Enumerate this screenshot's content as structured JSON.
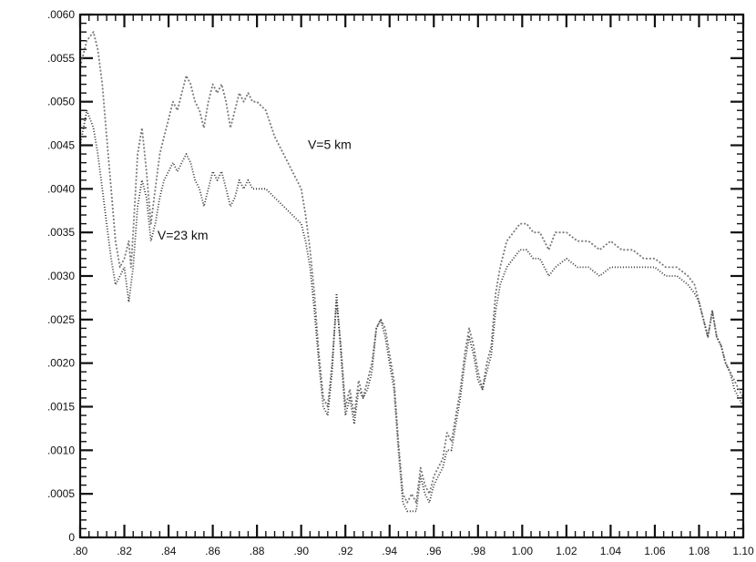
{
  "chart_data": {
    "type": "line",
    "title": "",
    "xlabel": "",
    "ylabel": "",
    "xlim": [
      0.8,
      1.1
    ],
    "ylim": [
      0,
      0.006
    ],
    "grid": false,
    "legend": "none",
    "x_ticks": [
      0.8,
      0.82,
      0.84,
      0.86,
      0.88,
      0.9,
      0.92,
      0.94,
      0.96,
      0.98,
      1.0,
      1.02,
      1.04,
      1.06,
      1.08,
      1.1
    ],
    "x_tick_labels": [
      ".80",
      ".82",
      ".84",
      ".86",
      ".88",
      ".90",
      ".92",
      ".94",
      ".96",
      ".98",
      "1.00",
      "1.02",
      "1.04",
      "1.06",
      "1.08",
      "1.10"
    ],
    "y_ticks": [
      0,
      0.0005,
      0.001,
      0.0015,
      0.002,
      0.0025,
      0.003,
      0.0035,
      0.004,
      0.0045,
      0.005,
      0.0055,
      0.006
    ],
    "y_tick_labels": [
      "0",
      ".0005",
      ".0010",
      ".0015",
      ".0020",
      ".0025",
      ".0030",
      ".0035",
      ".0040",
      ".0045",
      ".0050",
      ".0055",
      ".0060"
    ],
    "annotations": [
      {
        "text": "V=5 km",
        "x": 0.903,
        "y": 0.00446
      },
      {
        "text": "V=23 km",
        "x": 0.835,
        "y": 0.00342
      }
    ],
    "series": [
      {
        "color": "#7a7a7a",
        "dash": "2,2",
        "x": [
          0.8,
          0.803,
          0.806,
          0.808,
          0.81,
          0.812,
          0.814,
          0.816,
          0.818,
          0.82,
          0.822,
          0.823,
          0.824,
          0.826,
          0.828,
          0.83,
          0.832,
          0.834,
          0.836,
          0.838,
          0.84,
          0.842,
          0.844,
          0.846,
          0.848,
          0.85,
          0.852,
          0.854,
          0.856,
          0.858,
          0.86,
          0.862,
          0.864,
          0.866,
          0.868,
          0.87,
          0.872,
          0.874,
          0.876,
          0.878,
          0.88,
          0.884,
          0.888,
          0.892,
          0.896,
          0.9,
          0.902,
          0.904,
          0.906,
          0.908,
          0.91,
          0.912,
          0.914,
          0.916,
          0.918,
          0.92,
          0.922,
          0.924,
          0.926,
          0.928,
          0.93,
          0.932,
          0.934,
          0.936,
          0.938,
          0.94,
          0.942,
          0.944,
          0.946,
          0.948,
          0.95,
          0.952,
          0.954,
          0.956,
          0.958,
          0.96,
          0.962,
          0.964,
          0.966,
          0.968,
          0.97,
          0.972,
          0.974,
          0.976,
          0.978,
          0.98,
          0.982,
          0.984,
          0.986,
          0.988,
          0.99,
          0.993,
          0.996,
          0.999,
          1.002,
          1.005,
          1.008,
          1.01,
          1.012,
          1.015,
          1.02,
          1.025,
          1.03,
          1.035,
          1.04,
          1.045,
          1.05,
          1.055,
          1.06,
          1.065,
          1.07,
          1.075,
          1.078,
          1.08,
          1.082,
          1.084,
          1.086,
          1.088,
          1.09,
          1.092,
          1.094,
          1.096,
          1.098,
          1.1
        ],
        "y": [
          0.0054,
          0.0057,
          0.0058,
          0.0056,
          0.0052,
          0.0046,
          0.004,
          0.0034,
          0.0031,
          0.0032,
          0.0034,
          0.0031,
          0.0035,
          0.0044,
          0.0047,
          0.0042,
          0.0036,
          0.004,
          0.0044,
          0.0046,
          0.0048,
          0.005,
          0.0049,
          0.0051,
          0.0053,
          0.0052,
          0.005,
          0.0049,
          0.0047,
          0.005,
          0.0052,
          0.0051,
          0.0052,
          0.005,
          0.0047,
          0.0049,
          0.0051,
          0.005,
          0.0051,
          0.005,
          0.005,
          0.0049,
          0.0046,
          0.0044,
          0.0042,
          0.004,
          0.0037,
          0.0033,
          0.0028,
          0.0021,
          0.0016,
          0.0015,
          0.002,
          0.0027,
          0.0022,
          0.0015,
          0.0017,
          0.0014,
          0.0018,
          0.0016,
          0.0018,
          0.002,
          0.0024,
          0.0025,
          0.0024,
          0.0021,
          0.0018,
          0.0011,
          0.0005,
          0.0004,
          0.0005,
          0.0004,
          0.0008,
          0.0006,
          0.0005,
          0.0007,
          0.0008,
          0.0009,
          0.0012,
          0.0011,
          0.0014,
          0.0017,
          0.0021,
          0.0024,
          0.0022,
          0.0019,
          0.0017,
          0.002,
          0.0022,
          0.0028,
          0.0031,
          0.0034,
          0.0035,
          0.0036,
          0.0036,
          0.0035,
          0.0035,
          0.0034,
          0.0033,
          0.0035,
          0.0035,
          0.0034,
          0.0034,
          0.0033,
          0.0034,
          0.0033,
          0.0033,
          0.0032,
          0.0032,
          0.0031,
          0.0031,
          0.003,
          0.0029,
          0.0027,
          0.0025,
          0.0023,
          0.0026,
          0.0023,
          0.0022,
          0.002,
          0.0019,
          0.0018,
          0.0017,
          0.0016
        ]
      },
      {
        "color": "#333333",
        "dash": "1,2",
        "x": [
          0.8,
          0.803,
          0.806,
          0.808,
          0.81,
          0.812,
          0.814,
          0.816,
          0.818,
          0.82,
          0.822,
          0.823,
          0.824,
          0.826,
          0.828,
          0.83,
          0.832,
          0.834,
          0.836,
          0.838,
          0.84,
          0.842,
          0.844,
          0.846,
          0.848,
          0.85,
          0.852,
          0.854,
          0.856,
          0.858,
          0.86,
          0.862,
          0.864,
          0.866,
          0.868,
          0.87,
          0.872,
          0.874,
          0.876,
          0.878,
          0.88,
          0.884,
          0.888,
          0.892,
          0.896,
          0.9,
          0.902,
          0.904,
          0.906,
          0.908,
          0.91,
          0.912,
          0.914,
          0.916,
          0.918,
          0.92,
          0.922,
          0.924,
          0.926,
          0.928,
          0.93,
          0.932,
          0.934,
          0.936,
          0.938,
          0.94,
          0.942,
          0.944,
          0.946,
          0.948,
          0.95,
          0.952,
          0.954,
          0.956,
          0.958,
          0.96,
          0.962,
          0.964,
          0.966,
          0.968,
          0.97,
          0.972,
          0.974,
          0.976,
          0.978,
          0.98,
          0.982,
          0.984,
          0.986,
          0.988,
          0.99,
          0.993,
          0.996,
          0.999,
          1.002,
          1.005,
          1.008,
          1.01,
          1.012,
          1.015,
          1.02,
          1.025,
          1.03,
          1.035,
          1.04,
          1.045,
          1.05,
          1.055,
          1.06,
          1.065,
          1.07,
          1.075,
          1.078,
          1.08,
          1.082,
          1.084,
          1.086,
          1.088,
          1.09,
          1.092,
          1.094,
          1.096,
          1.098,
          1.1
        ],
        "y": [
          0.0045,
          0.0049,
          0.0047,
          0.0044,
          0.004,
          0.0036,
          0.0032,
          0.0029,
          0.003,
          0.0031,
          0.0027,
          0.0029,
          0.0031,
          0.0038,
          0.0041,
          0.0039,
          0.0034,
          0.0036,
          0.0039,
          0.0041,
          0.0042,
          0.0043,
          0.0042,
          0.0043,
          0.0044,
          0.0043,
          0.0041,
          0.004,
          0.0038,
          0.004,
          0.0042,
          0.0041,
          0.0042,
          0.004,
          0.0038,
          0.0039,
          0.0041,
          0.004,
          0.0041,
          0.004,
          0.004,
          0.004,
          0.0039,
          0.0038,
          0.0037,
          0.0036,
          0.0034,
          0.0031,
          0.0026,
          0.002,
          0.0015,
          0.0014,
          0.0019,
          0.0028,
          0.0021,
          0.0014,
          0.0016,
          0.0013,
          0.0017,
          0.0016,
          0.0017,
          0.0019,
          0.0024,
          0.0025,
          0.0023,
          0.002,
          0.0017,
          0.001,
          0.0004,
          0.0003,
          0.0003,
          0.0003,
          0.0007,
          0.0005,
          0.0004,
          0.0006,
          0.0007,
          0.0008,
          0.001,
          0.001,
          0.0013,
          0.0016,
          0.002,
          0.0023,
          0.0021,
          0.0018,
          0.0017,
          0.0019,
          0.0021,
          0.0026,
          0.0029,
          0.0031,
          0.0032,
          0.0033,
          0.0033,
          0.0032,
          0.0032,
          0.0031,
          0.003,
          0.0031,
          0.0032,
          0.0031,
          0.0031,
          0.003,
          0.0031,
          0.0031,
          0.0031,
          0.0031,
          0.0031,
          0.003,
          0.003,
          0.0029,
          0.0028,
          0.0027,
          0.0025,
          0.0023,
          0.0026,
          0.0023,
          0.0022,
          0.002,
          0.0019,
          0.0017,
          0.0016,
          0.0015
        ]
      }
    ]
  }
}
